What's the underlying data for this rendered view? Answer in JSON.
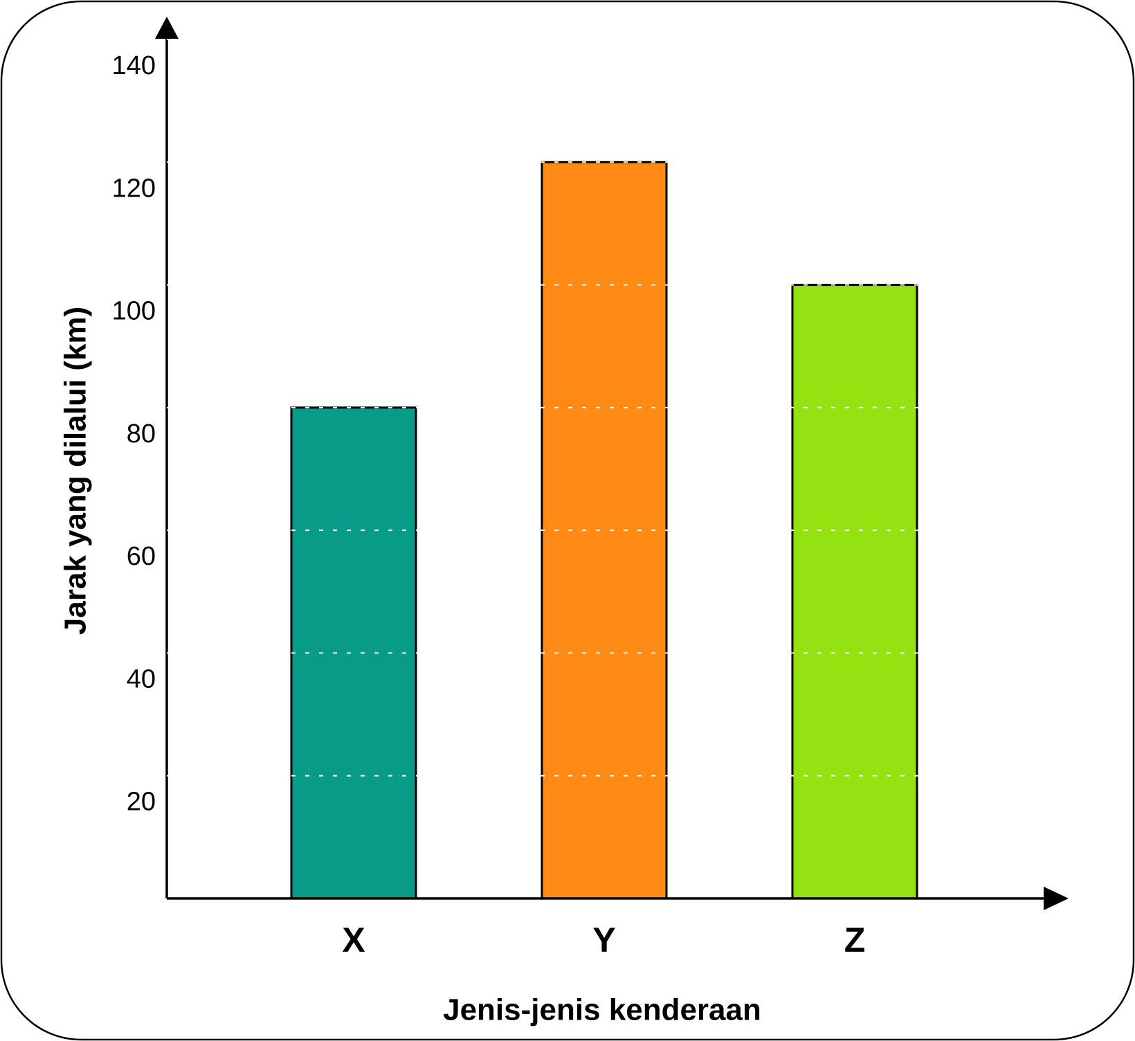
{
  "chart_data": {
    "type": "bar",
    "x_label": "Jenis-jenis kenderaan",
    "y_label": "Jarak yang dilalui (km)",
    "categories": [
      "X",
      "Y",
      "Z"
    ],
    "values": [
      80,
      120,
      100
    ],
    "colors": [
      "#089b88",
      "#fd8a14",
      "#95e213"
    ],
    "ylim": [
      0,
      140
    ],
    "yticks": [
      20,
      40,
      60,
      80,
      100,
      120,
      140
    ],
    "grid": true
  }
}
